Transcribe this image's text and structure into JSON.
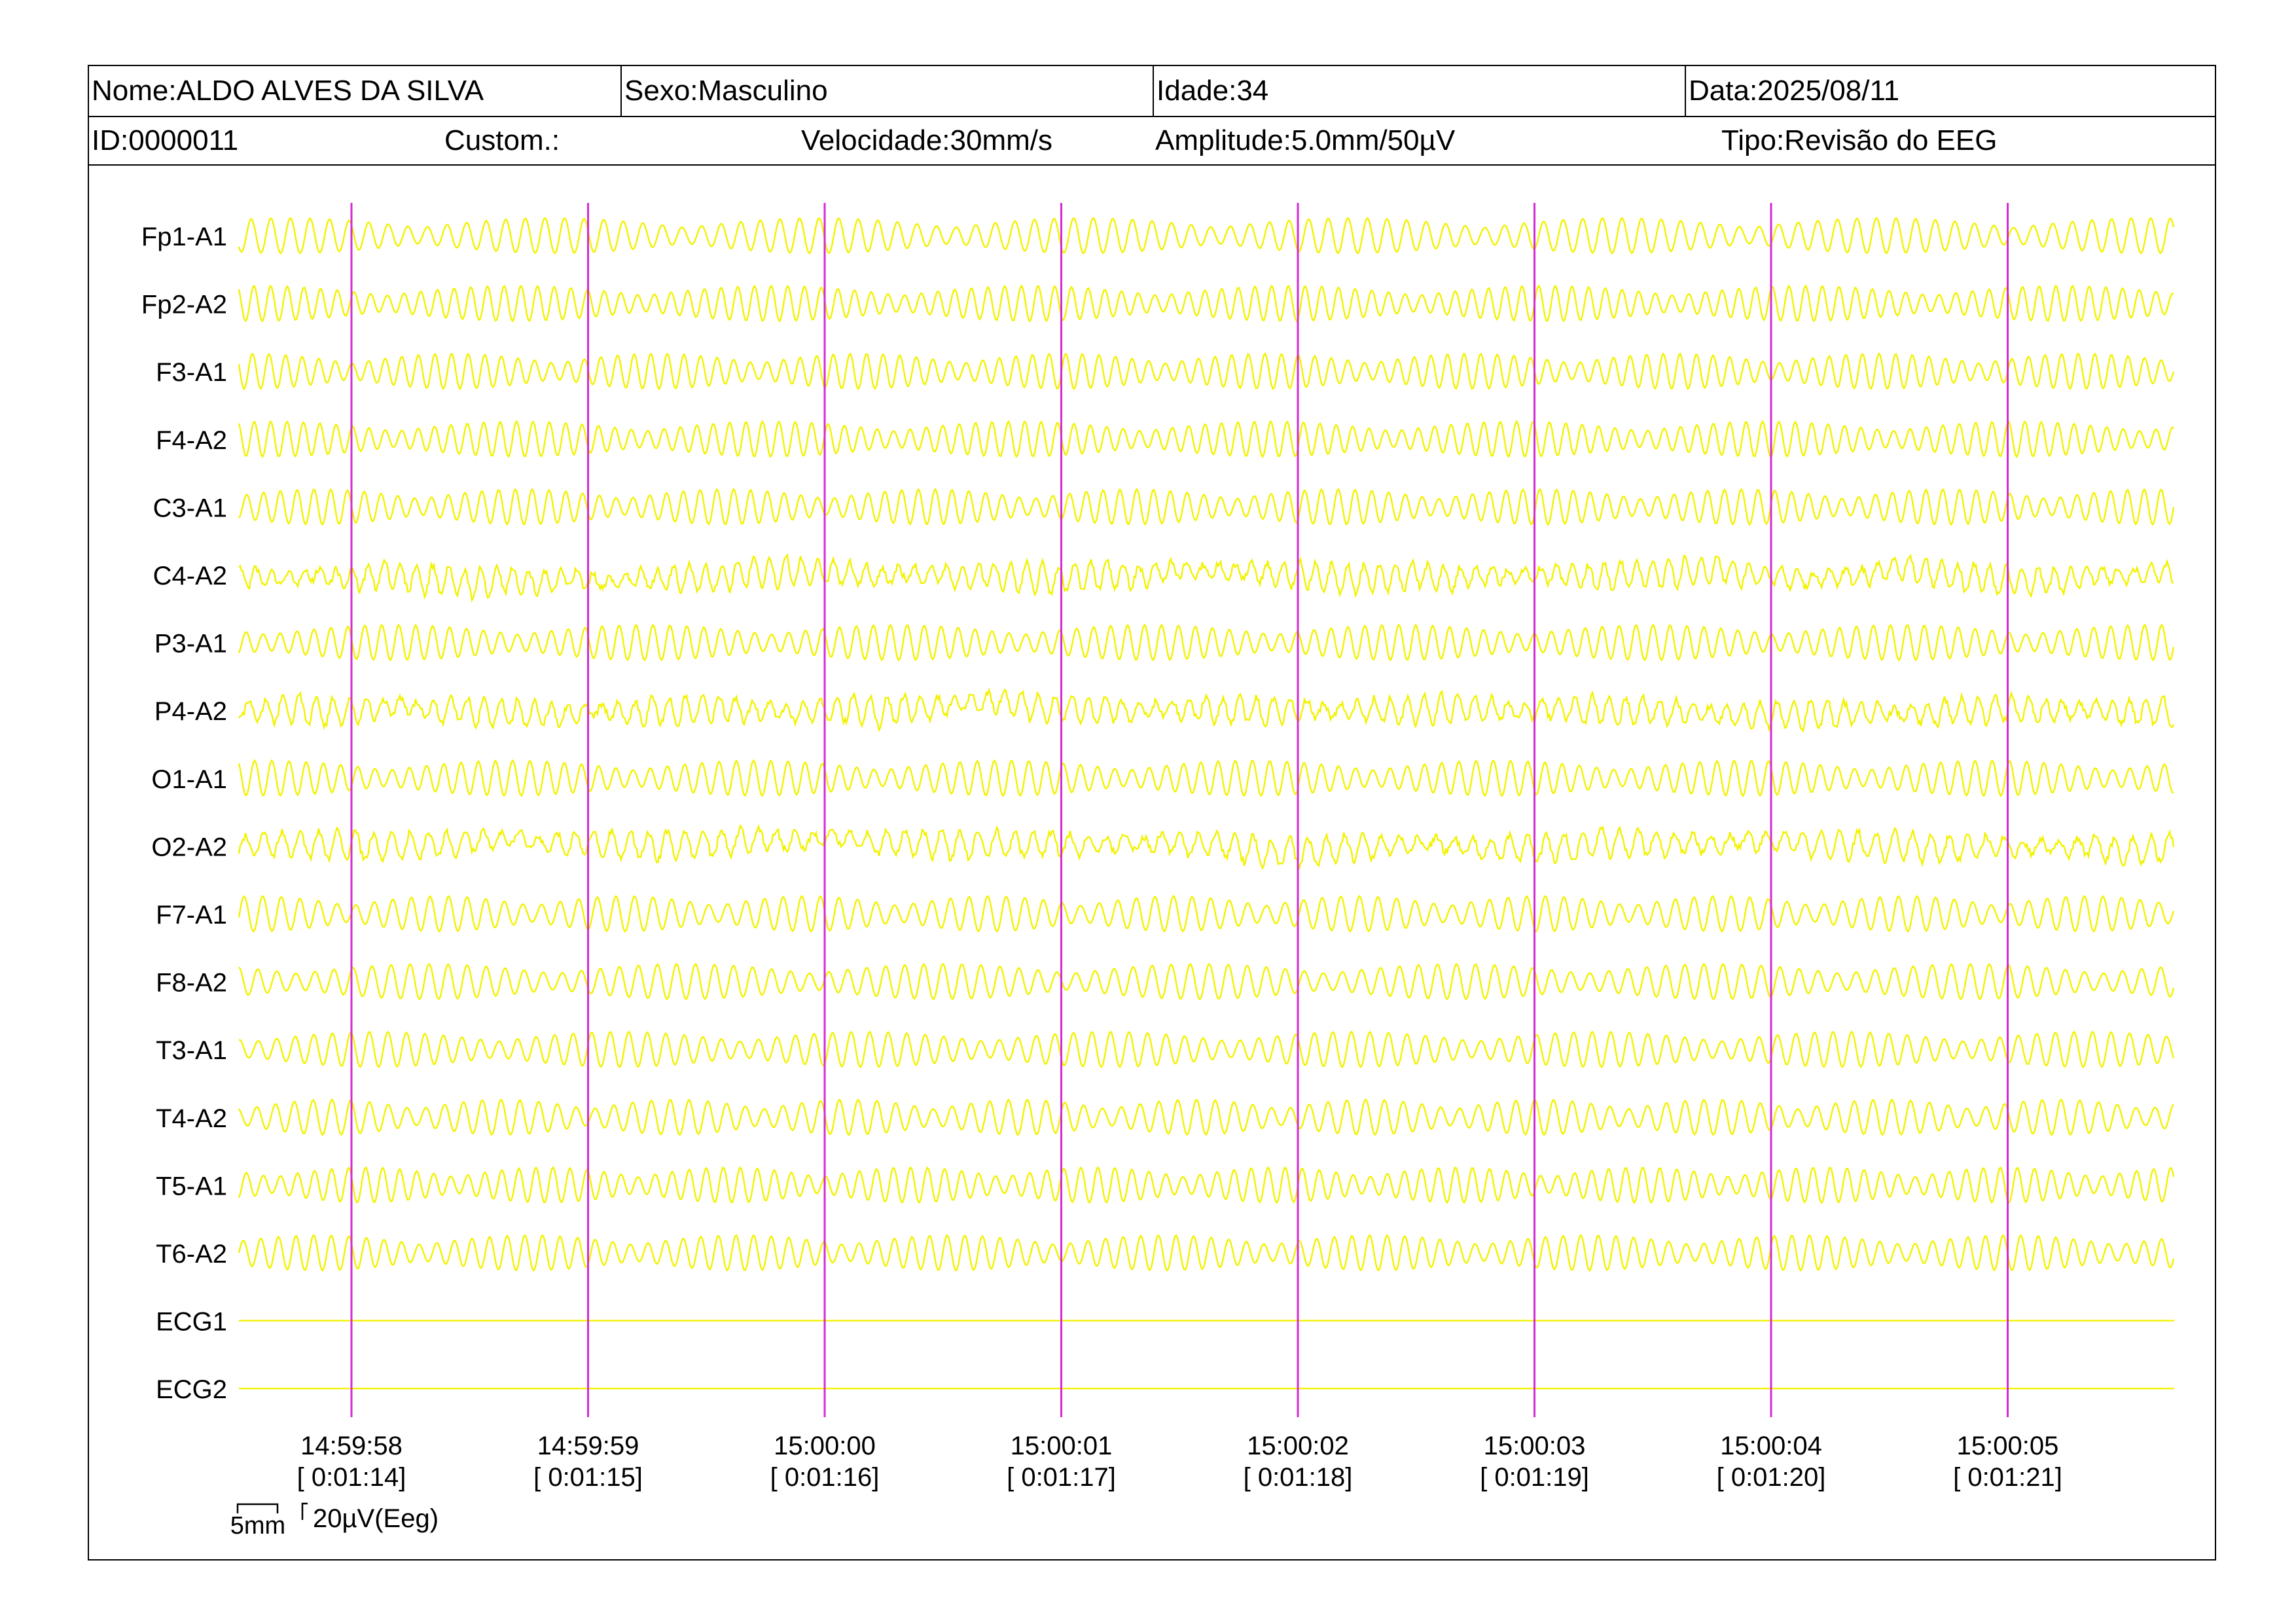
{
  "header": {
    "nome": "Nome:ALDO ALVES DA SILVA",
    "sexo": "Sexo:Masculino",
    "idade": "Idade:34",
    "data": "Data:2025/08/11",
    "id": "ID:0000011",
    "custom": "Custom.:",
    "velocidade": "Velocidade:30mm/s",
    "amplitude": "Amplitude:5.0mm/50µV",
    "tipo": "Tipo:Revisão do EEG"
  },
  "colors": {
    "trace": "#f2f200",
    "marker": "#d52bd5",
    "text": "#000000"
  },
  "chart_data": {
    "type": "line",
    "channels": [
      "Fp1-A1",
      "Fp2-A2",
      "F3-A1",
      "F4-A2",
      "C3-A1",
      "C4-A2",
      "P3-A1",
      "P4-A2",
      "O1-A1",
      "O2-A2",
      "F7-A1",
      "F8-A2",
      "T3-A1",
      "T4-A2",
      "T5-A1",
      "T6-A2",
      "ECG1",
      "ECG2"
    ],
    "flat_channels": [
      "ECG1",
      "ECG2"
    ],
    "time_markers": [
      {
        "clock": "14:59:58",
        "elapsed": "[ 0:01:14]"
      },
      {
        "clock": "14:59:59",
        "elapsed": "[ 0:01:15]"
      },
      {
        "clock": "15:00:00",
        "elapsed": "[ 0:01:16]"
      },
      {
        "clock": "15:00:01",
        "elapsed": "[ 0:01:17]"
      },
      {
        "clock": "15:00:02",
        "elapsed": "[ 0:01:18]"
      },
      {
        "clock": "15:00:03",
        "elapsed": "[ 0:01:19]"
      },
      {
        "clock": "15:00:04",
        "elapsed": "[ 0:01:20]"
      },
      {
        "clock": "15:00:05",
        "elapsed": "[ 0:01:21]"
      }
    ],
    "scale": {
      "time_label": "5mm",
      "amplitude_label": "20µV(Eeg)"
    }
  }
}
